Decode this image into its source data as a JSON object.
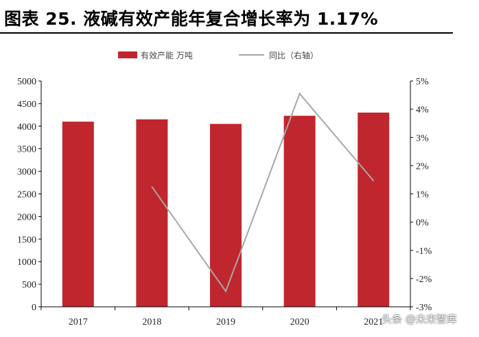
{
  "figure": {
    "title": "图表 25. 液碱有效产能年复合增长率为 1.17%",
    "watermark": "头条 @未来智库"
  },
  "chart_data": {
    "type": "bar",
    "categories": [
      "2017",
      "2018",
      "2019",
      "2020",
      "2021"
    ],
    "series": [
      {
        "name": "有效产能 万吨",
        "type": "bar",
        "axis": "left",
        "color": "#c0262d",
        "values": [
          4100,
          4150,
          4050,
          4230,
          4300
        ]
      },
      {
        "name": "同比（右轴）",
        "type": "line",
        "axis": "right",
        "color": "#a6a6a6",
        "values": [
          null,
          1.25,
          -2.45,
          4.55,
          1.47
        ]
      }
    ],
    "y_left": {
      "min": 0,
      "max": 5000,
      "step": 500,
      "ticks": [
        "0",
        "500",
        "1000",
        "1500",
        "2000",
        "2500",
        "3000",
        "3500",
        "4000",
        "4500",
        "5000"
      ]
    },
    "y_right": {
      "min": -3,
      "max": 5,
      "step": 1,
      "ticks": [
        "-3%",
        "-2%",
        "-1%",
        "0%",
        "1%",
        "2%",
        "3%",
        "4%",
        "5%"
      ]
    },
    "legend_position": "top",
    "grid": false
  }
}
